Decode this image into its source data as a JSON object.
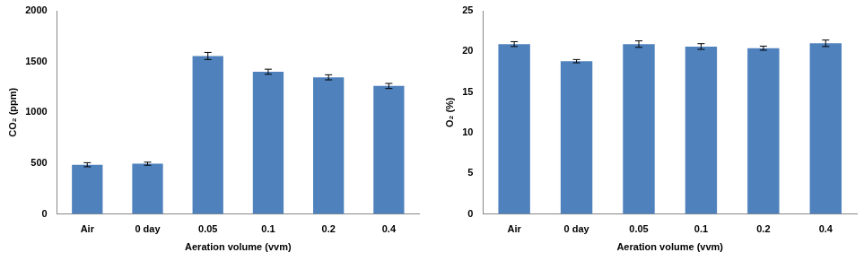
{
  "chart_data": [
    {
      "type": "bar",
      "x_label": "Aeration volume (vvm)",
      "y_label": "CO₂ (ppm)",
      "categories": [
        "Air",
        "0 day",
        "0.05",
        "0.1",
        "0.2",
        "0.4"
      ],
      "values": [
        485,
        495,
        1555,
        1400,
        1345,
        1260
      ],
      "errors": [
        20,
        15,
        35,
        25,
        25,
        25
      ],
      "color": "#4f81bd",
      "ylim": [
        0,
        2000
      ],
      "yticks": [
        0,
        500,
        1000,
        1500,
        2000
      ],
      "grid": false
    },
    {
      "type": "bar",
      "x_label": "Aeration volume (vvm)",
      "y_label": "O₂ (%)",
      "categories": [
        "Air",
        "0 day",
        "0.05",
        "0.1",
        "0.2",
        "0.4"
      ],
      "values": [
        20.9,
        18.8,
        20.9,
        20.6,
        20.4,
        21.0
      ],
      "errors": [
        0.3,
        0.2,
        0.4,
        0.35,
        0.25,
        0.4
      ],
      "color": "#4f81bd",
      "ylim": [
        0,
        25
      ],
      "yticks": [
        0,
        5,
        10,
        15,
        20,
        25
      ],
      "grid": false
    }
  ]
}
